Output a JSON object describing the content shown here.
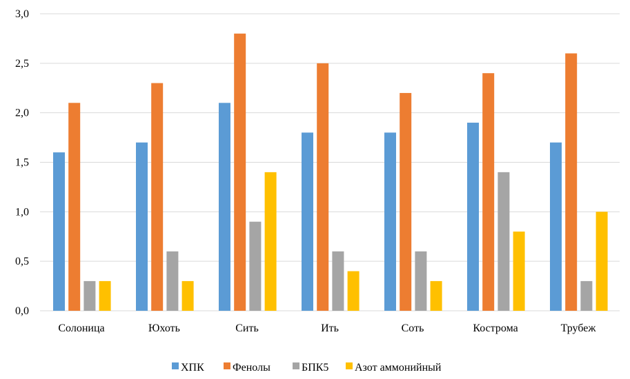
{
  "chart_data": {
    "type": "bar",
    "title": "",
    "xlabel": "",
    "ylabel": "",
    "ylim": [
      0,
      3
    ],
    "yticks": [
      "0,0",
      "0,5",
      "1,0",
      "1,5",
      "2,0",
      "2,5",
      "3,0"
    ],
    "grid": true,
    "legend_position": "bottom",
    "categories": [
      "Солоница",
      "Юхоть",
      "Сить",
      "Ить",
      "Соть",
      "Кострома",
      "Трубеж"
    ],
    "series": [
      {
        "name": "ХПК",
        "color": "#5B9BD5",
        "values": [
          1.6,
          1.7,
          2.1,
          1.8,
          1.8,
          1.9,
          1.7
        ]
      },
      {
        "name": "Фенолы",
        "color": "#ED7D31",
        "values": [
          2.1,
          2.3,
          2.8,
          2.5,
          2.2,
          2.4,
          2.6
        ]
      },
      {
        "name": "БПК5",
        "color": "#A5A5A5",
        "values": [
          0.3,
          0.6,
          0.9,
          0.6,
          0.6,
          1.4,
          0.3
        ]
      },
      {
        "name": "Азот аммонийный",
        "color": "#FFC000",
        "values": [
          0.3,
          0.3,
          1.4,
          0.4,
          0.3,
          0.8,
          1.0
        ]
      }
    ]
  }
}
